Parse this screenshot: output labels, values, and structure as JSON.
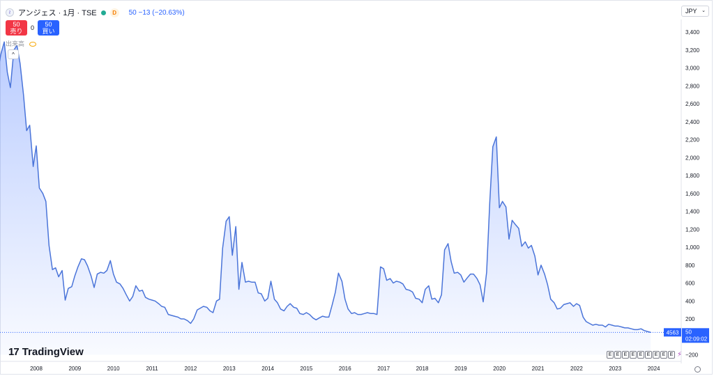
{
  "header": {
    "symbol_icon": "wave-icon",
    "title": "アンジェス · 1月 · TSE",
    "status_letter": "D",
    "price_info": "50 −13 (−20.63%)"
  },
  "trade": {
    "sell_price": "50",
    "sell_label": "売り",
    "spread": "0",
    "buy_price": "50",
    "buy_label": "買い"
  },
  "volume_label": "出来高",
  "currency": "JPY",
  "collapse_icon": "chevron-up-icon",
  "logo_text": "TradingView",
  "events": [
    "E",
    "E",
    "E",
    "E",
    "E",
    "E",
    "E",
    "E",
    "E"
  ],
  "price_badge": {
    "value": "50",
    "countdown": "02:09:02"
  },
  "volume_badge": "4563",
  "chart_data": {
    "type": "area",
    "title": "",
    "xlabel": "",
    "ylabel": "",
    "currency": "JPY",
    "ylim": [
      -200,
      3500
    ],
    "yticks": [
      -200,
      200,
      400,
      600,
      800,
      1000,
      1200,
      1400,
      1600,
      1800,
      2000,
      2200,
      2400,
      2600,
      2800,
      3000,
      3200,
      3400
    ],
    "xticks": [
      {
        "label": "2008",
        "t": 2008.0
      },
      {
        "label": "2009",
        "t": 2009.0
      },
      {
        "label": "2010",
        "t": 2010.0
      },
      {
        "label": "2011",
        "t": 2011.0
      },
      {
        "label": "2012",
        "t": 2012.0
      },
      {
        "label": "2013",
        "t": 2013.0
      },
      {
        "label": "2014",
        "t": 2014.0
      },
      {
        "label": "2015",
        "t": 2015.0
      },
      {
        "label": "2016",
        "t": 2016.0
      },
      {
        "label": "2017",
        "t": 2017.0
      },
      {
        "label": "2018",
        "t": 2018.0
      },
      {
        "label": "2019",
        "t": 2019.0
      },
      {
        "label": "2020",
        "t": 2020.0
      },
      {
        "label": "2021",
        "t": 2021.0
      },
      {
        "label": "2022",
        "t": 2022.0
      },
      {
        "label": "2023",
        "t": 2023.0
      },
      {
        "label": "2024",
        "t": 2024.0
      }
    ],
    "grid": false,
    "series": [
      {
        "color": "#4a74d9",
        "points": [
          [
            2006.92,
            3000
          ],
          [
            2007.0,
            2950
          ],
          [
            2007.08,
            3150
          ],
          [
            2007.17,
            3290
          ],
          [
            2007.25,
            2950
          ],
          [
            2007.33,
            2780
          ],
          [
            2007.42,
            3200
          ],
          [
            2007.5,
            3250
          ],
          [
            2007.58,
            3050
          ],
          [
            2007.67,
            2700
          ],
          [
            2007.75,
            2300
          ],
          [
            2007.83,
            2360
          ],
          [
            2007.92,
            1900
          ],
          [
            2008.0,
            2130
          ],
          [
            2008.08,
            1660
          ],
          [
            2008.17,
            1600
          ],
          [
            2008.25,
            1510
          ],
          [
            2008.33,
            1020
          ],
          [
            2008.42,
            750
          ],
          [
            2008.5,
            770
          ],
          [
            2008.58,
            670
          ],
          [
            2008.67,
            740
          ],
          [
            2008.75,
            410
          ],
          [
            2008.83,
            540
          ],
          [
            2008.92,
            560
          ],
          [
            2009.0,
            680
          ],
          [
            2009.08,
            780
          ],
          [
            2009.17,
            870
          ],
          [
            2009.25,
            860
          ],
          [
            2009.33,
            790
          ],
          [
            2009.42,
            680
          ],
          [
            2009.5,
            550
          ],
          [
            2009.58,
            700
          ],
          [
            2009.67,
            720
          ],
          [
            2009.75,
            710
          ],
          [
            2009.83,
            740
          ],
          [
            2009.92,
            850
          ],
          [
            2010.0,
            700
          ],
          [
            2010.08,
            610
          ],
          [
            2010.17,
            590
          ],
          [
            2010.25,
            540
          ],
          [
            2010.33,
            470
          ],
          [
            2010.42,
            400
          ],
          [
            2010.5,
            450
          ],
          [
            2010.58,
            570
          ],
          [
            2010.67,
            510
          ],
          [
            2010.75,
            520
          ],
          [
            2010.83,
            440
          ],
          [
            2010.92,
            420
          ],
          [
            2011.0,
            410
          ],
          [
            2011.08,
            400
          ],
          [
            2011.17,
            370
          ],
          [
            2011.25,
            340
          ],
          [
            2011.33,
            330
          ],
          [
            2011.42,
            250
          ],
          [
            2011.5,
            240
          ],
          [
            2011.58,
            230
          ],
          [
            2011.67,
            220
          ],
          [
            2011.75,
            200
          ],
          [
            2011.83,
            200
          ],
          [
            2011.92,
            180
          ],
          [
            2012.0,
            150
          ],
          [
            2012.08,
            200
          ],
          [
            2012.17,
            300
          ],
          [
            2012.25,
            320
          ],
          [
            2012.33,
            340
          ],
          [
            2012.42,
            330
          ],
          [
            2012.5,
            290
          ],
          [
            2012.58,
            270
          ],
          [
            2012.67,
            400
          ],
          [
            2012.75,
            420
          ],
          [
            2012.83,
            990
          ],
          [
            2012.92,
            1290
          ],
          [
            2013.0,
            1340
          ],
          [
            2013.08,
            910
          ],
          [
            2013.17,
            1230
          ],
          [
            2013.25,
            530
          ],
          [
            2013.33,
            830
          ],
          [
            2013.42,
            610
          ],
          [
            2013.5,
            620
          ],
          [
            2013.58,
            610
          ],
          [
            2013.67,
            610
          ],
          [
            2013.75,
            490
          ],
          [
            2013.83,
            480
          ],
          [
            2013.92,
            400
          ],
          [
            2014.0,
            430
          ],
          [
            2014.08,
            620
          ],
          [
            2014.17,
            420
          ],
          [
            2014.25,
            380
          ],
          [
            2014.33,
            310
          ],
          [
            2014.42,
            290
          ],
          [
            2014.5,
            340
          ],
          [
            2014.58,
            370
          ],
          [
            2014.67,
            330
          ],
          [
            2014.75,
            320
          ],
          [
            2014.83,
            260
          ],
          [
            2014.92,
            250
          ],
          [
            2015.0,
            270
          ],
          [
            2015.08,
            250
          ],
          [
            2015.17,
            210
          ],
          [
            2015.25,
            190
          ],
          [
            2015.33,
            210
          ],
          [
            2015.42,
            230
          ],
          [
            2015.5,
            220
          ],
          [
            2015.58,
            220
          ],
          [
            2015.67,
            360
          ],
          [
            2015.75,
            500
          ],
          [
            2015.83,
            710
          ],
          [
            2015.92,
            620
          ],
          [
            2016.0,
            420
          ],
          [
            2016.08,
            310
          ],
          [
            2016.17,
            260
          ],
          [
            2016.25,
            270
          ],
          [
            2016.33,
            250
          ],
          [
            2016.42,
            250
          ],
          [
            2016.5,
            260
          ],
          [
            2016.58,
            270
          ],
          [
            2016.67,
            260
          ],
          [
            2016.75,
            260
          ],
          [
            2016.83,
            250
          ],
          [
            2016.92,
            780
          ],
          [
            2017.0,
            760
          ],
          [
            2017.08,
            630
          ],
          [
            2017.17,
            650
          ],
          [
            2017.25,
            600
          ],
          [
            2017.33,
            620
          ],
          [
            2017.42,
            610
          ],
          [
            2017.5,
            590
          ],
          [
            2017.58,
            530
          ],
          [
            2017.67,
            520
          ],
          [
            2017.75,
            500
          ],
          [
            2017.83,
            430
          ],
          [
            2017.92,
            420
          ],
          [
            2018.0,
            380
          ],
          [
            2018.08,
            530
          ],
          [
            2018.17,
            570
          ],
          [
            2018.25,
            420
          ],
          [
            2018.33,
            430
          ],
          [
            2018.42,
            380
          ],
          [
            2018.5,
            470
          ],
          [
            2018.58,
            970
          ],
          [
            2018.67,
            1040
          ],
          [
            2018.75,
            840
          ],
          [
            2018.83,
            710
          ],
          [
            2018.92,
            720
          ],
          [
            2019.0,
            690
          ],
          [
            2019.08,
            610
          ],
          [
            2019.17,
            660
          ],
          [
            2019.25,
            700
          ],
          [
            2019.33,
            700
          ],
          [
            2019.42,
            650
          ],
          [
            2019.5,
            580
          ],
          [
            2019.58,
            390
          ],
          [
            2019.67,
            720
          ],
          [
            2019.75,
            1500
          ],
          [
            2019.83,
            2120
          ],
          [
            2019.92,
            2230
          ],
          [
            2020.0,
            1440
          ],
          [
            2020.08,
            1510
          ],
          [
            2020.17,
            1450
          ],
          [
            2020.25,
            1090
          ],
          [
            2020.33,
            1300
          ],
          [
            2020.42,
            1250
          ],
          [
            2020.5,
            1210
          ],
          [
            2020.58,
            1010
          ],
          [
            2020.67,
            1060
          ],
          [
            2020.75,
            990
          ],
          [
            2020.83,
            1020
          ],
          [
            2020.92,
            900
          ],
          [
            2021.0,
            690
          ],
          [
            2021.08,
            800
          ],
          [
            2021.17,
            700
          ],
          [
            2021.25,
            580
          ],
          [
            2021.33,
            420
          ],
          [
            2021.42,
            380
          ],
          [
            2021.5,
            310
          ],
          [
            2021.58,
            320
          ],
          [
            2021.67,
            360
          ],
          [
            2021.75,
            370
          ],
          [
            2021.83,
            380
          ],
          [
            2021.92,
            340
          ],
          [
            2022.0,
            370
          ],
          [
            2022.08,
            350
          ],
          [
            2022.17,
            220
          ],
          [
            2022.25,
            170
          ],
          [
            2022.33,
            150
          ],
          [
            2022.42,
            130
          ],
          [
            2022.5,
            140
          ],
          [
            2022.58,
            130
          ],
          [
            2022.67,
            130
          ],
          [
            2022.75,
            110
          ],
          [
            2022.83,
            140
          ],
          [
            2022.92,
            130
          ],
          [
            2023.0,
            120
          ],
          [
            2023.08,
            120
          ],
          [
            2023.17,
            110
          ],
          [
            2023.25,
            100
          ],
          [
            2023.33,
            100
          ],
          [
            2023.42,
            90
          ],
          [
            2023.5,
            80
          ],
          [
            2023.58,
            80
          ],
          [
            2023.67,
            90
          ],
          [
            2023.75,
            70
          ],
          [
            2023.83,
            60
          ],
          [
            2023.92,
            50
          ]
        ]
      }
    ]
  }
}
